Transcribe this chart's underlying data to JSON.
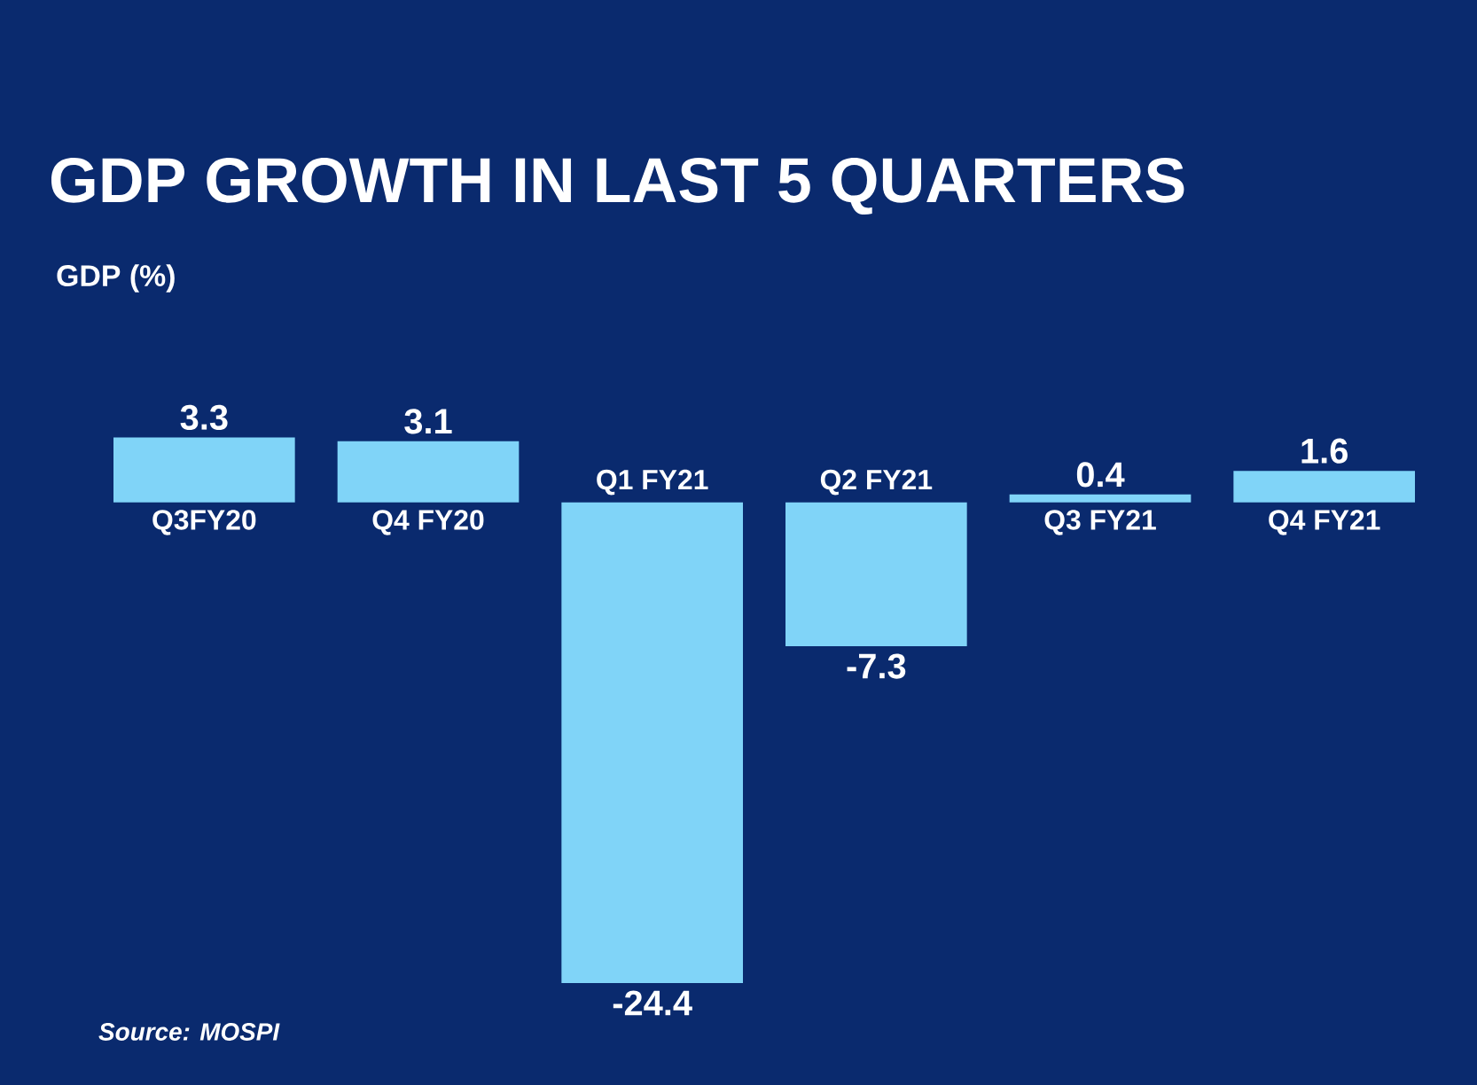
{
  "chart_data": {
    "type": "bar",
    "title": "GDP GROWTH IN LAST 5 QUARTERS",
    "ylabel": "GDP (%)",
    "categories": [
      "Q3FY20",
      "Q4 FY20",
      "Q1 FY21",
      "Q2 FY21",
      "Q3 FY21",
      "Q4 FY21"
    ],
    "values": [
      3.3,
      3.1,
      -24.4,
      -7.3,
      0.4,
      1.6
    ],
    "value_labels": [
      "3.3",
      "3.1",
      "-24.4",
      "-7.3",
      "0.4",
      "1.6"
    ],
    "color": "#80d4f8",
    "annotations": [
      "Source: MOSPI"
    ]
  }
}
